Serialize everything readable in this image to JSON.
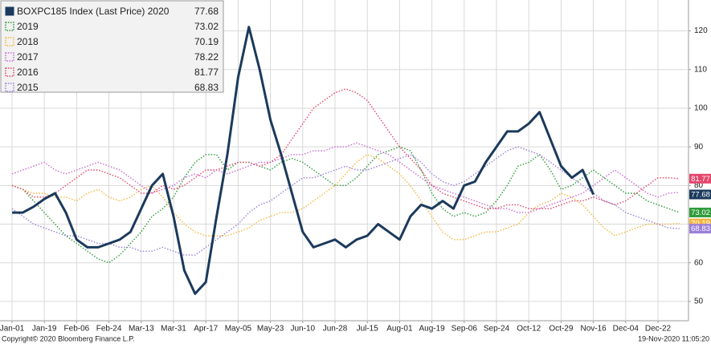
{
  "chart_data": {
    "type": "line",
    "footer_left": "Copyright© 2020 Bloomberg Finance L.P.",
    "footer_right": "19-Nov-2020 11:05:20",
    "categories": [
      "Jan-01",
      null,
      null,
      "Jan-19",
      null,
      null,
      "Feb-06",
      null,
      null,
      "Feb-24",
      null,
      null,
      "Mar-13",
      null,
      null,
      "Mar-31",
      null,
      null,
      "Apr-17",
      null,
      null,
      "May-05",
      null,
      null,
      "May-23",
      null,
      null,
      "Jun-10",
      null,
      null,
      "Jun-28",
      null,
      null,
      "Jul-15",
      null,
      null,
      "Aug-01",
      null,
      null,
      "Aug-19",
      null,
      null,
      "Sep-06",
      null,
      null,
      "Sep-24",
      null,
      null,
      "Oct-12",
      null,
      null,
      "Oct-29",
      null,
      null,
      "Nov-16",
      null,
      null,
      "Dec-04",
      null,
      null,
      "Dec-22",
      null,
      null
    ],
    "ylim": [
      45,
      128
    ],
    "yticks": [
      50,
      60,
      70,
      80,
      90,
      100,
      110,
      120
    ],
    "grid": true,
    "legend": "upper left",
    "series": [
      {
        "name": "BOXPC185 Index (Last Price) 2020",
        "color": "#1b3a5c",
        "style": "solid",
        "end_label": true,
        "values": [
          73,
          73,
          74.5,
          76.5,
          78,
          73,
          66,
          64,
          64,
          65,
          66,
          68,
          74,
          80,
          83,
          72,
          58,
          52,
          55,
          72,
          88,
          108,
          121,
          110,
          97,
          88,
          78,
          68,
          64,
          65,
          66,
          64,
          66,
          67,
          70,
          68,
          66,
          72,
          75,
          74,
          76,
          74,
          80,
          81,
          86,
          90,
          94,
          94,
          96,
          99,
          92,
          85,
          82,
          84,
          77.68,
          null,
          null,
          null,
          null,
          null,
          null,
          null,
          null
        ]
      },
      {
        "name": "2019",
        "color": "#2e9b3a",
        "style": "dotted",
        "end_label": true,
        "values": [
          80,
          79,
          76,
          73,
          70,
          67,
          65,
          63,
          61,
          60,
          62,
          65,
          68,
          72,
          74,
          77,
          82,
          86,
          88,
          88,
          84,
          86,
          86,
          85,
          84,
          86,
          87,
          86,
          84,
          82,
          80,
          80,
          82,
          85,
          88,
          89,
          90,
          89,
          84,
          78,
          74,
          72,
          73,
          72,
          73,
          76,
          80,
          85,
          86,
          88,
          84,
          79,
          80,
          82,
          84,
          82,
          80,
          78,
          78,
          76,
          75,
          74,
          73.02
        ]
      },
      {
        "name": "2018",
        "color": "#f4b63f",
        "style": "dotted",
        "end_label": true,
        "values": [
          80,
          79,
          78,
          78,
          77,
          77,
          76,
          78,
          79,
          77,
          76,
          77,
          79,
          80,
          77,
          73,
          70,
          68,
          67,
          67,
          67,
          68,
          69,
          71,
          72,
          73,
          73,
          74,
          76,
          78,
          80,
          83,
          86,
          88,
          87,
          85,
          83,
          80,
          76,
          72,
          68,
          66,
          66,
          67,
          68,
          68,
          69,
          70,
          73,
          75,
          76,
          78,
          77,
          75,
          72,
          69,
          67,
          68,
          69,
          70,
          70,
          70,
          70.19
        ]
      },
      {
        "name": "2017",
        "color": "#c96bd3",
        "style": "dotted",
        "end_label": false,
        "values": [
          83,
          84,
          85,
          86,
          84,
          83,
          84,
          85,
          86,
          85,
          84,
          82,
          80,
          78,
          79,
          80,
          82,
          83,
          82,
          84,
          83,
          84,
          85,
          86,
          86,
          87,
          88,
          88,
          89,
          89,
          90,
          90,
          91,
          90,
          89,
          88,
          86,
          84,
          82,
          80,
          79,
          78,
          77,
          76,
          75,
          74,
          74,
          73,
          73,
          74,
          75,
          76,
          77,
          78,
          80,
          82,
          84,
          82,
          80,
          78,
          77,
          78,
          78.22
        ]
      },
      {
        "name": "2016",
        "color": "#e4456a",
        "style": "dotted",
        "end_label": true,
        "values": [
          80,
          79,
          77,
          77,
          78,
          80,
          82,
          84,
          84,
          83,
          82,
          80,
          78,
          78,
          80,
          79,
          80,
          82,
          84,
          84,
          85,
          86,
          86,
          85,
          86,
          88,
          92,
          96,
          100,
          102,
          104,
          105,
          104,
          102,
          98,
          94,
          90,
          87,
          84,
          80,
          78,
          77,
          76,
          75,
          74,
          74,
          75,
          75,
          74,
          74,
          74,
          75,
          76,
          76,
          77,
          76,
          75,
          76,
          78,
          80,
          82,
          82,
          81.77
        ]
      },
      {
        "name": "2015",
        "color": "#9b7fd8",
        "style": "dotted",
        "end_label": true,
        "values": [
          74,
          72,
          70,
          69,
          68,
          67,
          67,
          66,
          65,
          65,
          64,
          64,
          63,
          63,
          64,
          63,
          62,
          62,
          64,
          66,
          68,
          70,
          73,
          75,
          76,
          78,
          80,
          82,
          82,
          83,
          84,
          85,
          84,
          84,
          85,
          86,
          87,
          88,
          86,
          83,
          81,
          80,
          81,
          83,
          85,
          87,
          89,
          90,
          89,
          88,
          86,
          84,
          82,
          80,
          78,
          76,
          75,
          73,
          72,
          71,
          70,
          69,
          68.83
        ]
      }
    ]
  }
}
